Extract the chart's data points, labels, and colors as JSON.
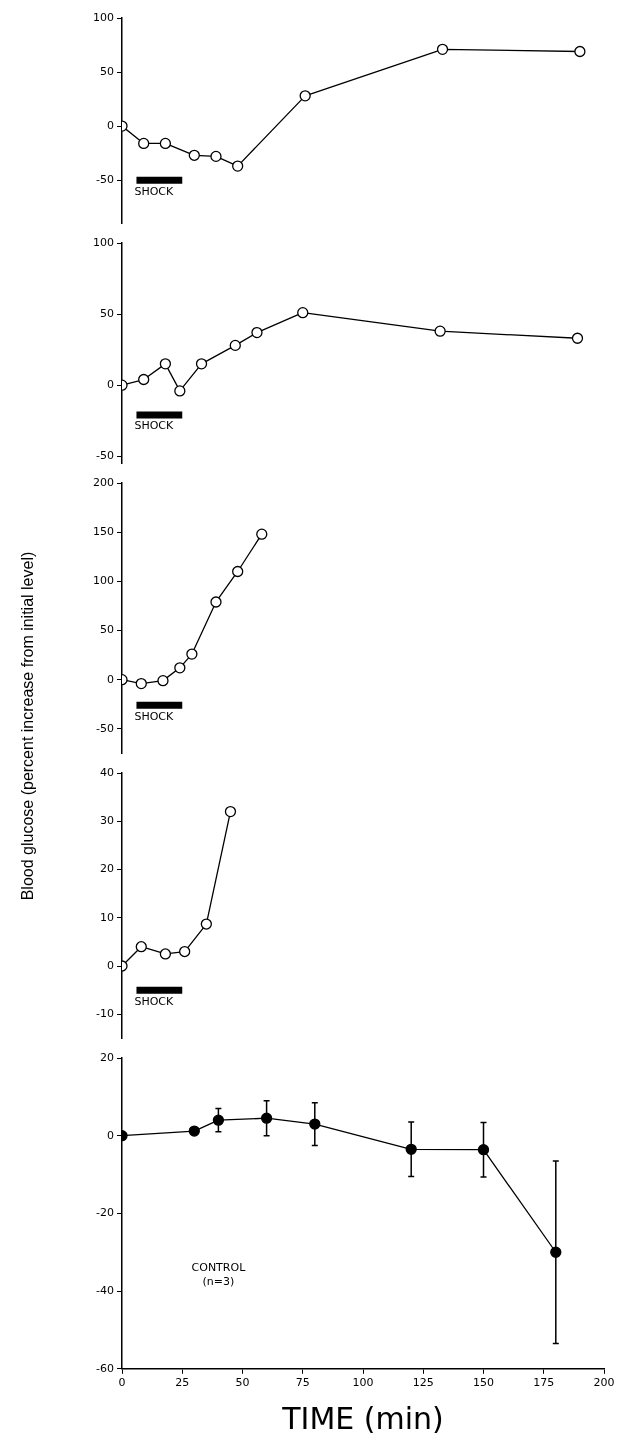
{
  "chart_data": [
    {
      "type": "line",
      "xlim": [
        0,
        200
      ],
      "ylim": [
        -90,
        100
      ],
      "yticks": [
        -50,
        0,
        50,
        100
      ],
      "tick_labels": "y",
      "grid": false,
      "legend": false,
      "marker": "circle",
      "line_style": "solid",
      "series": [
        {
          "color": "#000000",
          "x": [
            0,
            9,
            18,
            30,
            39,
            48,
            76,
            133,
            190
          ],
          "values": [
            0,
            -16,
            -16,
            -27,
            -28,
            -37,
            28,
            71,
            69
          ]
        },
        {
          "name": "SHOCK",
          "color": "#000000",
          "marker": "none",
          "x": [
            6,
            25
          ],
          "values": [
            -50,
            -50
          ]
        }
      ]
    },
    {
      "type": "line",
      "xlim": [
        0,
        200
      ],
      "ylim": [
        -55,
        100
      ],
      "yticks": [
        -50,
        0,
        50,
        100
      ],
      "tick_labels": "y",
      "grid": false,
      "legend": false,
      "marker": "circle",
      "line_style": "solid",
      "ylabel": "Blood glucose (percent increase from initial level)",
      "series": [
        {
          "color": "#000000",
          "x": [
            0,
            9,
            18,
            24,
            33,
            47,
            56,
            75,
            132,
            189
          ],
          "values": [
            0,
            4,
            15,
            -4,
            15,
            28,
            37,
            51,
            38,
            33
          ]
        },
        {
          "name": "SHOCK",
          "color": "#000000",
          "marker": "none",
          "x": [
            6,
            25
          ],
          "values": [
            -21,
            -21
          ]
        }
      ]
    },
    {
      "type": "line",
      "xlim": [
        0,
        200
      ],
      "ylim": [
        -75,
        200
      ],
      "yticks": [
        -50,
        0,
        50,
        100,
        150,
        200
      ],
      "tick_labels": "y",
      "grid": false,
      "legend": false,
      "marker": "circle",
      "line_style": "solid",
      "series": [
        {
          "color": "#000000",
          "x": [
            0,
            8,
            17,
            24,
            29,
            39,
            48,
            58
          ],
          "values": [
            0,
            -4,
            -1,
            12,
            26,
            79,
            110,
            148
          ]
        },
        {
          "name": "SHOCK",
          "color": "#000000",
          "marker": "none",
          "x": [
            6,
            25
          ],
          "values": [
            -26,
            -26
          ]
        }
      ]
    },
    {
      "type": "line",
      "xlim": [
        0,
        200
      ],
      "ylim": [
        -15,
        40
      ],
      "yticks": [
        -10,
        0,
        10,
        20,
        30,
        40
      ],
      "tick_labels": "y",
      "grid": false,
      "legend": false,
      "marker": "circle",
      "line_style": "solid",
      "series": [
        {
          "color": "#000000",
          "x": [
            0,
            8,
            18,
            26,
            35,
            45
          ],
          "values": [
            0,
            4,
            2.5,
            3,
            8.7,
            32
          ]
        },
        {
          "name": "SHOCK",
          "color": "#000000",
          "marker": "none",
          "x": [
            6,
            25
          ],
          "values": [
            -5,
            -5
          ]
        }
      ]
    },
    {
      "type": "line",
      "xlim": [
        0,
        200
      ],
      "ylim": [
        -60,
        20
      ],
      "xticks": [
        0,
        25,
        50,
        75,
        100,
        125,
        150,
        175,
        200
      ],
      "yticks": [
        -60,
        -40,
        -20,
        0,
        20
      ],
      "grid": false,
      "legend": false,
      "marker": "circle",
      "line_style": "solid",
      "xlabel": "TIME (min)",
      "annotations": [
        "CONTROL",
        "(n=3)"
      ],
      "series": [
        {
          "color": "#000000",
          "x": [
            0,
            30,
            40,
            60,
            80,
            120,
            150,
            180
          ],
          "values": [
            0,
            1.2,
            4,
            4.5,
            3,
            -3.5,
            -3.6,
            -30
          ],
          "errors": [
            null,
            null,
            3,
            4.5,
            5.5,
            7,
            7,
            23.5
          ]
        }
      ]
    }
  ]
}
